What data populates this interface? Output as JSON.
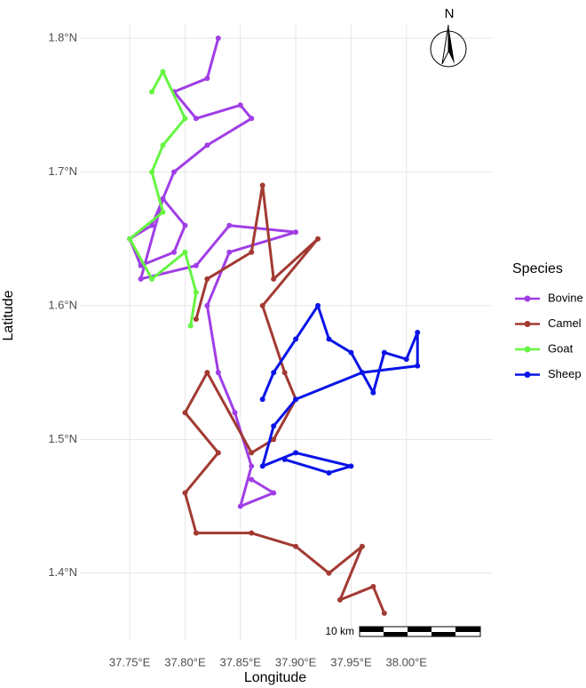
{
  "chart_data": {
    "type": "line",
    "x_label": "Longitude",
    "y_label": "Latitude",
    "legend_title": "Species",
    "legend_position": "right",
    "north_label": "N",
    "scalebar_label": "10 km",
    "xlim": [
      37.705,
      38.078
    ],
    "ylim": [
      1.35,
      1.81
    ],
    "grid": true,
    "xticks": [
      {
        "value": 37.75,
        "label": "37.75°E"
      },
      {
        "value": 37.8,
        "label": "37.80°E"
      },
      {
        "value": 37.85,
        "label": "37.85°E"
      },
      {
        "value": 37.9,
        "label": "37.90°E"
      },
      {
        "value": 37.95,
        "label": "37.95°E"
      },
      {
        "value": 38.0,
        "label": "38.00°E"
      }
    ],
    "yticks": [
      {
        "value": 1.4,
        "label": "1.4°N"
      },
      {
        "value": 1.5,
        "label": "1.5°N"
      },
      {
        "value": 1.6,
        "label": "1.6°N"
      },
      {
        "value": 1.7,
        "label": "1.7°N"
      },
      {
        "value": 1.8,
        "label": "1.8°N"
      }
    ],
    "series": [
      {
        "name": "Bovine",
        "color": "#a03ee6",
        "x": [
          37.83,
          37.82,
          37.79,
          37.81,
          37.85,
          37.86,
          37.82,
          37.79,
          37.77,
          37.75,
          37.76,
          37.79,
          37.8,
          37.78,
          37.76,
          37.81,
          37.84,
          37.9,
          37.84,
          37.82,
          37.83,
          37.845,
          37.86,
          37.85,
          37.88,
          37.86
        ],
        "values": [
          1.8,
          1.77,
          1.76,
          1.74,
          1.75,
          1.74,
          1.72,
          1.7,
          1.66,
          1.65,
          1.63,
          1.64,
          1.66,
          1.68,
          1.62,
          1.63,
          1.66,
          1.655,
          1.64,
          1.6,
          1.55,
          1.52,
          1.48,
          1.45,
          1.46,
          1.47
        ]
      },
      {
        "name": "Camel",
        "color": "#a23a32",
        "x": [
          37.81,
          37.82,
          37.86,
          37.87,
          37.88,
          37.92,
          37.87,
          37.89,
          37.9,
          37.88,
          37.86,
          37.82,
          37.8,
          37.83,
          37.8,
          37.81,
          37.86,
          37.9,
          37.93,
          37.96,
          37.94,
          37.97,
          37.98
        ],
        "values": [
          1.59,
          1.62,
          1.64,
          1.69,
          1.62,
          1.65,
          1.6,
          1.55,
          1.53,
          1.5,
          1.49,
          1.55,
          1.52,
          1.49,
          1.46,
          1.43,
          1.43,
          1.42,
          1.4,
          1.42,
          1.38,
          1.39,
          1.37
        ]
      },
      {
        "name": "Goat",
        "color": "#66f542",
        "x": [
          37.77,
          37.78,
          37.8,
          37.78,
          37.77,
          37.78,
          37.75,
          37.77,
          37.8,
          37.81,
          37.805
        ],
        "values": [
          1.76,
          1.775,
          1.74,
          1.72,
          1.7,
          1.67,
          1.65,
          1.62,
          1.64,
          1.61,
          1.585
        ]
      },
      {
        "name": "Sheep",
        "color": "#0a14e6",
        "x": [
          37.87,
          37.88,
          37.9,
          37.92,
          37.93,
          37.95,
          37.96,
          37.97,
          37.98,
          38.0,
          38.01,
          38.01,
          37.96,
          37.9,
          37.88,
          37.87,
          37.9,
          37.95,
          37.93,
          37.89
        ],
        "values": [
          1.53,
          1.55,
          1.575,
          1.6,
          1.575,
          1.565,
          1.55,
          1.535,
          1.565,
          1.56,
          1.58,
          1.555,
          1.55,
          1.53,
          1.51,
          1.48,
          1.49,
          1.48,
          1.475,
          1.485
        ]
      }
    ]
  }
}
